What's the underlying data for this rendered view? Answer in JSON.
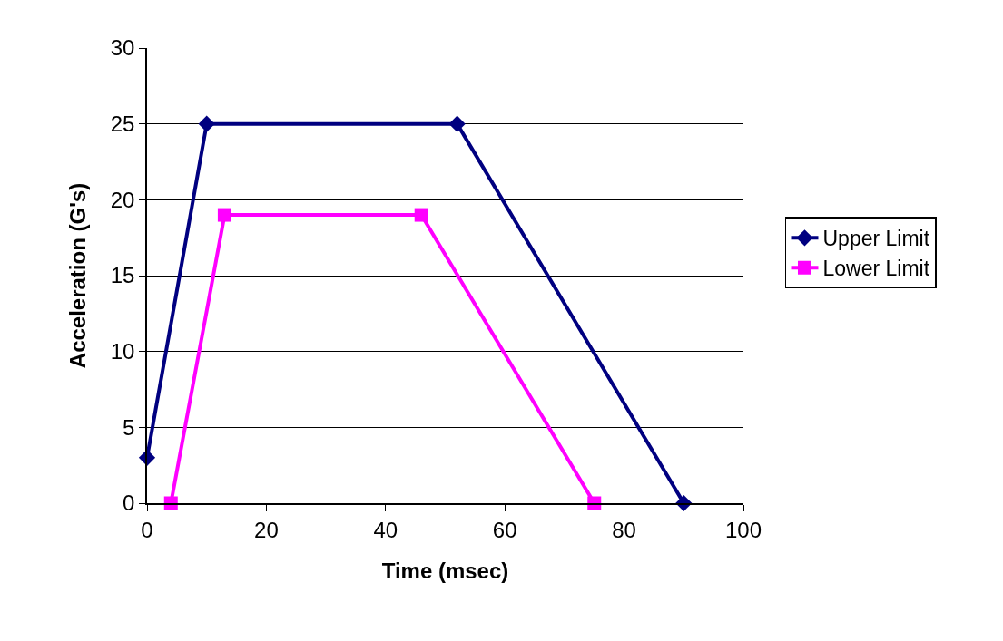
{
  "chart_data": {
    "type": "line",
    "xlabel": "Time (msec)",
    "ylabel": "Acceleration (G's)",
    "xlim": [
      0,
      100
    ],
    "xticks": [
      0,
      20,
      40,
      60,
      80,
      100
    ],
    "ylim": [
      0,
      30
    ],
    "yticks": [
      0,
      5,
      10,
      15,
      20,
      25,
      30
    ],
    "grid": "y",
    "legend": "right",
    "line_style": "solid",
    "series": [
      {
        "name": "Upper Limit",
        "color": "#000080",
        "marker": "diamond",
        "x": [
          0,
          10,
          52,
          90
        ],
        "values": [
          3,
          25,
          25,
          0
        ]
      },
      {
        "name": "Lower Limit",
        "color": "#ff00ff",
        "marker": "square",
        "x": [
          4,
          13,
          46,
          75
        ],
        "values": [
          0,
          19,
          19,
          0
        ]
      }
    ]
  }
}
